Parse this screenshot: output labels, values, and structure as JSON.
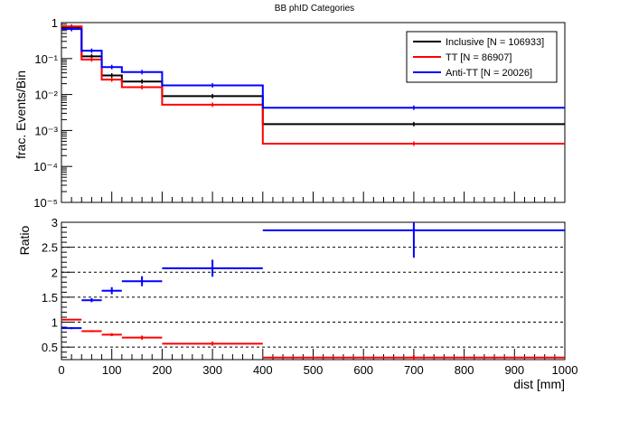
{
  "chart_data": [
    {
      "type": "line",
      "title": "BB phID Categories",
      "ylabel": "frac. Events/Bin",
      "yscale": "log",
      "ylim": [
        1e-05,
        1
      ],
      "xlim": [
        0,
        1000
      ],
      "legend": "top-right",
      "bin_edges": [
        0,
        40,
        80,
        120,
        200,
        400,
        1000
      ],
      "y_tick_labels": [
        "10⁻⁵",
        "10⁻⁴",
        "10⁻³",
        "10⁻²",
        "10⁻¹",
        "1"
      ],
      "y_tick_values": [
        1e-05,
        0.0001,
        0.001,
        0.01,
        0.1,
        1
      ],
      "series": [
        {
          "name": "Inclusive [N = 106933]",
          "color": "#000000",
          "values": [
            0.74,
            0.115,
            0.034,
            0.023,
            0.009,
            0.0015
          ]
        },
        {
          "name": "TT [N = 86907]",
          "color": "#ff0000",
          "values": [
            0.78,
            0.094,
            0.026,
            0.016,
            0.0052,
            0.00043
          ]
        },
        {
          "name": "Anti-TT [N = 20026]",
          "color": "#0000ff",
          "values": [
            0.66,
            0.165,
            0.058,
            0.042,
            0.018,
            0.0043
          ]
        }
      ]
    },
    {
      "type": "scatter",
      "ylabel": "Ratio",
      "xlabel": "dist [mm]",
      "xlim": [
        0,
        1000
      ],
      "ylim": [
        0.25,
        3
      ],
      "grid": "horizontal dashed",
      "x_tick_labels": [
        "0",
        "100",
        "200",
        "300",
        "400",
        "500",
        "600",
        "700",
        "800",
        "900",
        "1000"
      ],
      "x_tick_values": [
        0,
        100,
        200,
        300,
        400,
        500,
        600,
        700,
        800,
        900,
        1000
      ],
      "y_tick_labels": [
        "0.5",
        "1",
        "1.5",
        "2",
        "2.5",
        "3"
      ],
      "y_tick_values": [
        0.5,
        1,
        1.5,
        2,
        2.5,
        3
      ],
      "bin_edges": [
        0,
        40,
        80,
        120,
        200,
        400,
        1000
      ],
      "series": [
        {
          "name": "TT",
          "color": "#ff0000",
          "values": [
            1.05,
            0.82,
            0.75,
            0.69,
            0.57,
            0.29
          ],
          "errors": [
            0.01,
            0.02,
            0.03,
            0.04,
            0.04,
            0.05
          ]
        },
        {
          "name": "Anti-TT",
          "color": "#0000ff",
          "values": [
            0.88,
            1.44,
            1.63,
            1.82,
            2.08,
            2.84
          ],
          "errors": [
            0.02,
            0.04,
            0.07,
            0.1,
            0.17,
            0.55
          ]
        }
      ]
    }
  ]
}
